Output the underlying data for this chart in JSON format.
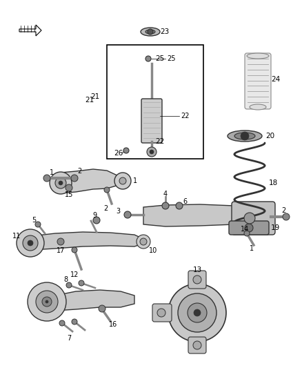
{
  "background_color": "#ffffff",
  "fig_width": 4.38,
  "fig_height": 5.33,
  "dpi": 100,
  "line_color": "#555555",
  "dark_color": "#333333",
  "mid_color": "#888888",
  "light_color": "#cccccc"
}
